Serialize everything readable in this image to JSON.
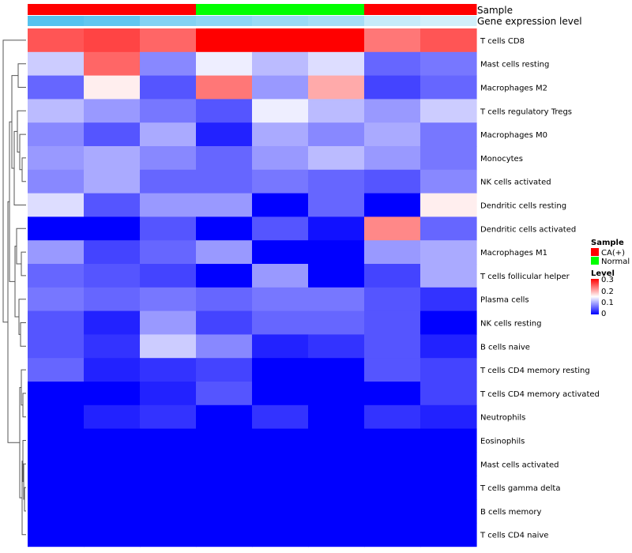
{
  "chart_data": {
    "type": "heatmap",
    "title": "",
    "annotation_labels": {
      "sample": "Sample",
      "gene_expression": "Gene expression level"
    },
    "columns": [
      {
        "sample": "CA(+)",
        "gene_expression_level": 0.3
      },
      {
        "sample": "CA(+)",
        "gene_expression_level": 0.28
      },
      {
        "sample": "CA(+)",
        "gene_expression_level": 0.22
      },
      {
        "sample": "Normal",
        "gene_expression_level": 0.2
      },
      {
        "sample": "Normal",
        "gene_expression_level": 0.18
      },
      {
        "sample": "Normal",
        "gene_expression_level": 0.16
      },
      {
        "sample": "CA(+)",
        "gene_expression_level": 0.1
      },
      {
        "sample": "CA(+)",
        "gene_expression_level": 0.08
      }
    ],
    "rows": [
      "T cells CD8",
      "Mast cells resting",
      "Macrophages M2",
      "T cells regulatory  Tregs",
      "Macrophages M0",
      "Monocytes",
      "NK cells activated",
      "Dendritic cells resting",
      "Dendritic cells activated",
      "Macrophages M1",
      "T cells follicular helper",
      "Plasma cells",
      "NK cells resting",
      "B cells naive",
      "T cells CD4 memory resting",
      "T cells CD4 memory activated",
      "Neutrophils",
      "Eosinophils",
      "Mast cells activated",
      "T cells gamma delta",
      "B cells memory",
      "T cells CD4 naive"
    ],
    "values": [
      [
        0.25,
        0.26,
        0.24,
        0.3,
        0.3,
        0.3,
        0.23,
        0.25
      ],
      [
        0.12,
        0.24,
        0.08,
        0.14,
        0.11,
        0.13,
        0.06,
        0.07
      ],
      [
        0.06,
        0.16,
        0.05,
        0.23,
        0.09,
        0.2,
        0.04,
        0.06
      ],
      [
        0.11,
        0.09,
        0.07,
        0.05,
        0.14,
        0.11,
        0.09,
        0.12
      ],
      [
        0.08,
        0.05,
        0.1,
        0.02,
        0.1,
        0.08,
        0.1,
        0.07
      ],
      [
        0.09,
        0.1,
        0.08,
        0.06,
        0.09,
        0.11,
        0.09,
        0.07
      ],
      [
        0.08,
        0.1,
        0.06,
        0.06,
        0.07,
        0.06,
        0.05,
        0.08
      ],
      [
        0.13,
        0.05,
        0.09,
        0.09,
        0.0,
        0.06,
        0.0,
        0.16
      ],
      [
        0.0,
        0.0,
        0.05,
        0.0,
        0.05,
        0.01,
        0.22,
        0.06
      ],
      [
        0.09,
        0.04,
        0.06,
        0.09,
        0.0,
        0.0,
        0.09,
        0.1
      ],
      [
        0.06,
        0.05,
        0.04,
        0.0,
        0.09,
        0.0,
        0.04,
        0.1
      ],
      [
        0.07,
        0.06,
        0.07,
        0.06,
        0.07,
        0.07,
        0.05,
        0.03
      ],
      [
        0.05,
        0.02,
        0.09,
        0.04,
        0.06,
        0.06,
        0.05,
        0.0
      ],
      [
        0.05,
        0.03,
        0.12,
        0.08,
        0.02,
        0.03,
        0.05,
        0.02
      ],
      [
        0.06,
        0.02,
        0.03,
        0.04,
        0.0,
        0.0,
        0.05,
        0.04
      ],
      [
        0.0,
        0.0,
        0.02,
        0.05,
        0.0,
        0.0,
        0.0,
        0.04
      ],
      [
        0.0,
        0.02,
        0.03,
        0.0,
        0.03,
        0.0,
        0.03,
        0.02
      ],
      [
        0.0,
        0.0,
        0.0,
        0.0,
        0.0,
        0.0,
        0.0,
        0.0
      ],
      [
        0.0,
        0.0,
        0.0,
        0.0,
        0.0,
        0.0,
        0.0,
        0.0
      ],
      [
        0.0,
        0.0,
        0.0,
        0.0,
        0.0,
        0.0,
        0.0,
        0.0
      ],
      [
        0.0,
        0.0,
        0.0,
        0.0,
        0.0,
        0.0,
        0.0,
        0.0
      ],
      [
        0.0,
        0.0,
        0.0,
        0.0,
        0.0,
        0.0,
        0.0,
        0.0
      ]
    ],
    "color_scale": {
      "min": 0,
      "max": 0.3,
      "low_color": "#0000ff",
      "mid_color": "#ffffff",
      "high_color": "#ff0000"
    },
    "gene_expression_scale": {
      "low_color": "#ffffff",
      "high_color": "#56c2ee"
    },
    "legend": {
      "sample_title": "Sample",
      "sample_entries": [
        {
          "label": "CA(+)",
          "color": "#ff0000"
        },
        {
          "label": "Normal",
          "color": "#00ff00"
        }
      ],
      "level_title": "Level",
      "level_ticks": [
        "0.3",
        "0.2",
        "0.1",
        "0"
      ]
    },
    "dendrogram": "rows"
  }
}
